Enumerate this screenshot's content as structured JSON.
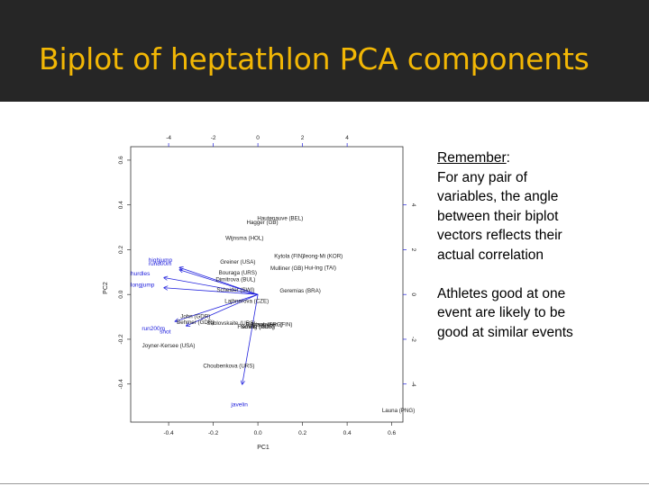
{
  "slide": {
    "title": "Biplot of heptathlon PCA components",
    "remember_heading": "Remember",
    "remember_colon": ":",
    "remember_lines": [
      "For any pair of",
      "variables, the angle",
      "between their biplot",
      "vectors reflects their",
      "actual correlation"
    ],
    "athletes_lines": [
      "Athletes good at one",
      "event are likely to be",
      "good at similar events"
    ]
  },
  "colors": {
    "title": "#f2b705",
    "title_bar": "#262626",
    "vectors": "#2222dd",
    "points": "#222222"
  },
  "chart_data": {
    "type": "scatter",
    "title": "",
    "xlabel": "PC1",
    "ylabel": "PC2",
    "xlim": [
      -0.57,
      0.65
    ],
    "ylim": [
      -0.57,
      0.66
    ],
    "x_ticks": [
      -0.4,
      -0.2,
      0.0,
      0.2,
      0.4,
      0.6
    ],
    "y_ticks": [
      -0.4,
      -0.2,
      0.0,
      0.2,
      0.4,
      0.6
    ],
    "x_tick_labels": [
      "-0.4",
      "-0.2",
      "0.0",
      "0.2",
      "0.4",
      "0.6"
    ],
    "y_tick_labels": [
      "-0.4",
      "-0.2",
      "0.0",
      "0.2",
      "0.4",
      "0.6"
    ],
    "top_axis": {
      "ticks": [
        -4,
        -2,
        0,
        2,
        4
      ],
      "labels": [
        "-4",
        "-2",
        "0",
        "2",
        "4"
      ]
    },
    "right_axis": {
      "ticks": [
        4,
        2,
        0,
        -2,
        -4
      ],
      "labels": [
        "4",
        "2",
        "0",
        "-2",
        "-4"
      ]
    },
    "athletes": [
      {
        "name": "Hautenauve (BEL)",
        "x": 0.1,
        "y": 0.34
      },
      {
        "name": "Hagger (GB)",
        "x": 0.02,
        "y": 0.32
      },
      {
        "name": "Wijnsma (HOL)",
        "x": -0.06,
        "y": 0.25
      },
      {
        "name": "Kytola (FIN)",
        "x": 0.14,
        "y": 0.17
      },
      {
        "name": "Jeong-Mi (KOR)",
        "x": 0.29,
        "y": 0.17
      },
      {
        "name": "Greiner (USA)",
        "x": -0.09,
        "y": 0.145
      },
      {
        "name": "Mulliner (GB)",
        "x": 0.13,
        "y": 0.115
      },
      {
        "name": "Hui-Ing (TAI)",
        "x": 0.28,
        "y": 0.118
      },
      {
        "name": "Bouraga (URS)",
        "x": -0.09,
        "y": 0.095
      },
      {
        "name": "Dimitrova (BUL)",
        "x": -0.1,
        "y": 0.065
      },
      {
        "name": "Scheider (SWI)",
        "x": -0.1,
        "y": 0.02
      },
      {
        "name": "Geremias (BRA)",
        "x": 0.19,
        "y": 0.015
      },
      {
        "name": "Lajbnerova (CZE)",
        "x": -0.05,
        "y": -0.03
      },
      {
        "name": "John (GDR)",
        "x": -0.28,
        "y": -0.1
      },
      {
        "name": "Behmer (GDR)",
        "x": -0.28,
        "y": -0.125
      },
      {
        "name": "Sablovskaite (URS)",
        "x": -0.12,
        "y": -0.13
      },
      {
        "name": "Braun (FRG)",
        "x": 0.04,
        "y": -0.135
      },
      {
        "name": "Ruotsalainen (FIN)",
        "x": 0.05,
        "y": -0.135
      },
      {
        "name": "Fleming (AUS)",
        "x": -0.01,
        "y": -0.145
      },
      {
        "name": "Schulz (GDR)",
        "x": 0.0,
        "y": -0.145
      },
      {
        "name": "Joyner-Kersee (USA)",
        "x": -0.4,
        "y": -0.23
      },
      {
        "name": "Choubenkova (URS)",
        "x": -0.13,
        "y": -0.32
      },
      {
        "name": "Launa (PNG)",
        "x": 0.63,
        "y": -0.52
      }
    ],
    "vectors": [
      {
        "name": "hurdles",
        "x": -0.42,
        "y": 0.075
      },
      {
        "name": "highjump",
        "x": -0.35,
        "y": 0.12
      },
      {
        "name": "run800m",
        "x": -0.35,
        "y": 0.11
      },
      {
        "name": "longjump",
        "x": -0.42,
        "y": 0.03
      },
      {
        "name": "run200m",
        "x": -0.37,
        "y": -0.12
      },
      {
        "name": "shot",
        "x": -0.32,
        "y": -0.14
      },
      {
        "name": "javelin",
        "x": -0.07,
        "y": -0.4
      }
    ],
    "vector_labels": [
      {
        "name": "highjump",
        "x": -0.49,
        "y": 0.145
      },
      {
        "name": "run800m",
        "x": -0.49,
        "y": 0.13
      },
      {
        "name": "hurdles",
        "x": -0.57,
        "y": 0.085
      },
      {
        "name": "longjump",
        "x": -0.57,
        "y": 0.035
      },
      {
        "name": "run200m",
        "x": -0.52,
        "y": -0.16
      },
      {
        "name": "shot",
        "x": -0.44,
        "y": -0.175
      },
      {
        "name": "javelin",
        "x": -0.12,
        "y": -0.5
      }
    ]
  }
}
